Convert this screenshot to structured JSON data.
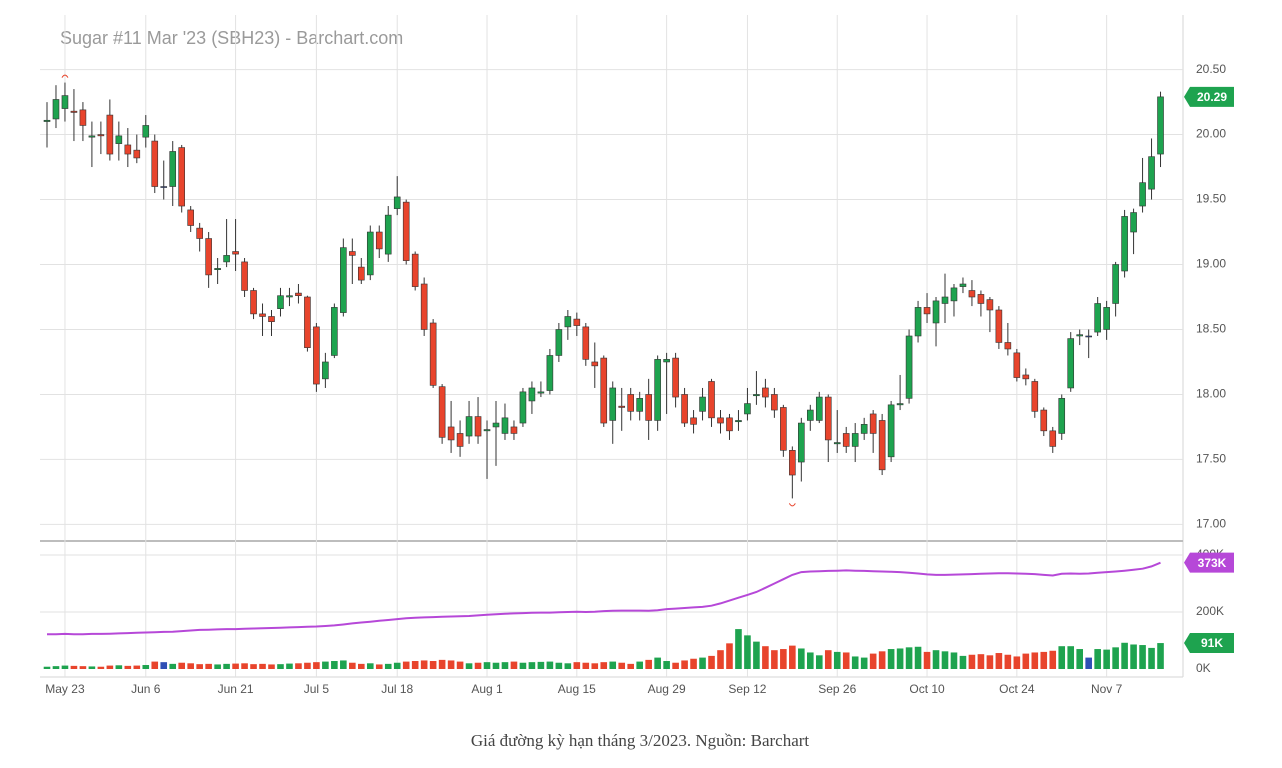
{
  "chart_data": {
    "type": "candlestick",
    "title": "Sugar #11 Mar '23 (SBH23) - Barchart.com",
    "categories": [
      null,
      null,
      "May 23",
      null,
      null,
      null,
      null,
      null,
      null,
      null,
      null,
      "Jun 6",
      null,
      null,
      null,
      null,
      null,
      null,
      null,
      null,
      null,
      "Jun 21",
      null,
      null,
      null,
      null,
      null,
      null,
      null,
      null,
      "Jul 5",
      null,
      null,
      null,
      null,
      null,
      null,
      null,
      null,
      "Jul 18",
      null,
      null,
      null,
      null,
      null,
      null,
      null,
      null,
      null,
      "Aug 1",
      null,
      null,
      null,
      null,
      null,
      null,
      null,
      null,
      null,
      "Aug 15",
      null,
      null,
      null,
      null,
      null,
      null,
      null,
      null,
      null,
      "Aug 29",
      null,
      null,
      null,
      null,
      null,
      null,
      null,
      null,
      "Sep 12",
      null,
      null,
      null,
      null,
      null,
      null,
      null,
      null,
      null,
      "Sep 26",
      null,
      null,
      null,
      null,
      null,
      null,
      null,
      null,
      null,
      "Oct 10",
      null,
      null,
      null,
      null,
      null,
      null,
      null,
      null,
      null,
      "Oct 24",
      null,
      null,
      null,
      null,
      null,
      null,
      null,
      null,
      null,
      "Nov 7",
      null,
      null,
      null,
      null,
      null,
      null
    ],
    "open": [
      20.1,
      20.12,
      20.2,
      20.18,
      20.19,
      19.98,
      20.0,
      20.15,
      19.93,
      19.92,
      19.88,
      19.98,
      19.95,
      19.6,
      19.6,
      19.9,
      19.42,
      19.28,
      19.2,
      18.96,
      19.02,
      19.1,
      19.02,
      18.8,
      18.62,
      18.6,
      18.66,
      18.75,
      18.78,
      18.75,
      18.52,
      18.12,
      18.3,
      18.63,
      19.1,
      18.98,
      18.92,
      19.25,
      19.08,
      19.43,
      19.48,
      19.08,
      18.85,
      18.55,
      18.06,
      17.75,
      17.7,
      17.68,
      17.83,
      17.72,
      17.75,
      17.7,
      17.75,
      17.78,
      17.95,
      18.01,
      18.03,
      18.3,
      18.52,
      18.58,
      18.52,
      18.25,
      18.28,
      17.8,
      17.91,
      18.0,
      17.87,
      18.0,
      17.8,
      18.25,
      18.28,
      18.0,
      17.82,
      17.87,
      18.1,
      17.82,
      17.82,
      17.79,
      17.85,
      17.99,
      18.05,
      18.0,
      17.9,
      17.57,
      17.48,
      17.8,
      17.8,
      17.98,
      17.62,
      17.7,
      17.6,
      17.7,
      17.85,
      17.8,
      17.52,
      17.92,
      17.97,
      18.45,
      18.67,
      18.55,
      18.7,
      18.72,
      18.83,
      18.8,
      18.77,
      18.73,
      18.65,
      18.4,
      18.32,
      18.15,
      18.1,
      17.88,
      17.72,
      17.7,
      18.05,
      18.45,
      18.45,
      18.48,
      18.5,
      18.7,
      18.95,
      19.25,
      19.45,
      19.58,
      19.85
    ],
    "high": [
      20.25,
      20.38,
      20.4,
      20.35,
      20.25,
      20.1,
      20.1,
      20.27,
      20.1,
      20.05,
      20.0,
      20.15,
      20.0,
      19.8,
      19.95,
      19.92,
      19.45,
      19.32,
      19.25,
      19.05,
      19.35,
      19.35,
      19.05,
      18.82,
      18.7,
      18.65,
      18.82,
      18.82,
      18.85,
      18.76,
      18.55,
      18.32,
      18.7,
      19.2,
      19.2,
      19.05,
      19.3,
      19.3,
      19.45,
      19.68,
      19.5,
      19.1,
      18.9,
      18.58,
      18.08,
      17.95,
      17.8,
      17.95,
      17.98,
      17.8,
      17.95,
      17.93,
      17.8,
      18.05,
      18.1,
      18.1,
      18.35,
      18.55,
      18.65,
      18.63,
      18.55,
      18.4,
      18.3,
      18.1,
      18.05,
      18.05,
      18.02,
      18.12,
      18.3,
      18.32,
      18.32,
      18.05,
      17.88,
      18.05,
      18.12,
      17.88,
      17.85,
      17.88,
      18.05,
      18.18,
      18.12,
      18.05,
      17.92,
      17.6,
      17.82,
      17.92,
      18.02,
      18.0,
      17.88,
      17.75,
      17.78,
      17.82,
      17.88,
      17.85,
      17.95,
      18.15,
      18.5,
      18.72,
      18.78,
      18.75,
      18.93,
      18.85,
      18.9,
      18.88,
      18.8,
      18.75,
      18.68,
      18.55,
      18.35,
      18.2,
      18.12,
      17.9,
      17.75,
      18.0,
      18.48,
      18.5,
      18.5,
      18.75,
      18.72,
      19.02,
      19.42,
      19.43,
      19.82,
      19.97,
      20.33
    ],
    "low": [
      19.9,
      20.05,
      20.1,
      19.95,
      19.95,
      19.75,
      19.85,
      19.8,
      19.8,
      19.75,
      19.78,
      19.9,
      19.55,
      19.5,
      19.45,
      19.4,
      19.25,
      19.1,
      18.82,
      18.85,
      18.98,
      18.95,
      18.75,
      18.58,
      18.45,
      18.45,
      18.6,
      18.68,
      18.7,
      18.33,
      18.02,
      18.05,
      18.28,
      18.6,
      18.85,
      18.85,
      18.88,
      19.05,
      19.02,
      19.38,
      19.0,
      18.8,
      18.45,
      18.05,
      17.62,
      17.55,
      17.52,
      17.62,
      17.62,
      17.35,
      17.45,
      17.65,
      17.65,
      17.75,
      17.85,
      17.98,
      18.0,
      18.25,
      18.42,
      18.45,
      18.22,
      18.05,
      17.75,
      17.62,
      17.72,
      17.8,
      17.8,
      17.65,
      17.72,
      17.85,
      17.9,
      17.75,
      17.7,
      17.8,
      17.75,
      17.7,
      17.65,
      17.72,
      17.8,
      17.92,
      17.9,
      17.82,
      17.52,
      17.2,
      17.33,
      17.72,
      17.78,
      17.48,
      17.55,
      17.55,
      17.48,
      17.65,
      17.55,
      17.38,
      17.48,
      17.88,
      17.93,
      18.4,
      18.55,
      18.37,
      18.55,
      18.6,
      18.78,
      18.68,
      18.6,
      18.48,
      18.35,
      18.3,
      18.1,
      18.07,
      17.82,
      17.68,
      17.55,
      17.65,
      18.02,
      18.38,
      18.28,
      18.45,
      18.42,
      18.6,
      18.9,
      19.08,
      19.4,
      19.5,
      19.75
    ],
    "close": [
      20.11,
      20.27,
      20.3,
      20.17,
      20.07,
      19.99,
      19.99,
      19.85,
      19.99,
      19.85,
      19.82,
      20.07,
      19.6,
      19.6,
      19.87,
      19.45,
      19.3,
      19.2,
      18.92,
      18.97,
      19.07,
      19.08,
      18.8,
      18.62,
      18.6,
      18.56,
      18.76,
      18.76,
      18.76,
      18.36,
      18.08,
      18.25,
      18.67,
      19.13,
      19.07,
      18.88,
      19.25,
      19.12,
      19.38,
      19.52,
      19.03,
      18.83,
      18.5,
      18.07,
      17.67,
      17.65,
      17.6,
      17.83,
      17.68,
      17.73,
      17.78,
      17.82,
      17.7,
      18.02,
      18.05,
      18.02,
      18.3,
      18.5,
      18.6,
      18.53,
      18.27,
      18.22,
      17.78,
      18.05,
      17.9,
      17.87,
      17.97,
      17.8,
      18.27,
      18.27,
      17.98,
      17.78,
      17.77,
      17.98,
      17.82,
      17.78,
      17.72,
      17.8,
      17.93,
      18.0,
      17.98,
      17.88,
      17.57,
      17.38,
      17.78,
      17.88,
      17.98,
      17.65,
      17.63,
      17.6,
      17.7,
      17.77,
      17.7,
      17.42,
      17.92,
      17.93,
      18.45,
      18.67,
      18.62,
      18.72,
      18.75,
      18.82,
      18.85,
      18.75,
      18.7,
      18.65,
      18.4,
      18.35,
      18.13,
      18.12,
      17.87,
      17.72,
      17.6,
      17.97,
      18.43,
      18.46,
      18.45,
      18.7,
      18.67,
      19.0,
      19.37,
      19.4,
      19.63,
      19.83,
      20.29
    ],
    "up_color": "#1ea34f",
    "down_color": "#e8442c",
    "unchanged_color": "#2f4fb5",
    "wick_color": "#333333",
    "ylim": [
      16.88,
      20.92
    ],
    "yticks": [
      {
        "value": 17,
        "label": "17.00"
      },
      {
        "value": 17.5,
        "label": "17.50"
      },
      {
        "value": 18,
        "label": "18.00"
      },
      {
        "value": 18.5,
        "label": "18.50"
      },
      {
        "value": 19,
        "label": "19.00"
      },
      {
        "value": 19.5,
        "label": "19.50"
      },
      {
        "value": 20,
        "label": "20.00"
      },
      {
        "value": 20.5,
        "label": "20.50"
      }
    ],
    "grid": true,
    "volume": {
      "values": [
        8,
        10,
        12,
        11,
        10,
        9,
        8,
        12,
        13,
        11,
        12,
        14,
        26,
        24,
        18,
        22,
        20,
        17,
        18,
        16,
        18,
        19,
        20,
        17,
        18,
        16,
        17,
        19,
        20,
        22,
        24,
        26,
        28,
        30,
        22,
        18,
        20,
        16,
        18,
        22,
        26,
        28,
        30,
        28,
        32,
        30,
        26,
        20,
        22,
        24,
        22,
        24,
        26,
        22,
        24,
        25,
        26,
        22,
        20,
        24,
        22,
        20,
        24,
        26,
        22,
        18,
        26,
        32,
        40,
        28,
        22,
        30,
        36,
        40,
        46,
        66,
        90,
        140,
        118,
        96,
        80,
        66,
        70,
        82,
        72,
        58,
        48,
        66,
        60,
        58,
        44,
        40,
        54,
        62,
        70,
        72,
        76,
        78,
        60,
        66,
        62,
        58,
        46,
        50,
        52,
        48,
        56,
        50,
        44,
        54,
        58,
        60,
        64,
        80,
        80,
        70,
        40,
        70,
        68,
        76,
        92,
        86,
        84,
        74,
        91
      ],
      "value_labels": [
        null,
        null,
        null,
        null,
        null,
        null,
        null,
        null,
        null,
        null,
        null,
        null,
        null,
        null,
        null,
        null,
        null,
        null,
        null,
        null,
        null,
        null,
        null,
        null,
        null,
        null,
        null,
        null,
        null,
        null,
        null,
        null,
        null,
        null,
        null,
        null,
        null,
        null,
        null,
        null,
        null,
        null,
        null,
        null,
        null,
        null,
        null,
        null,
        null,
        null,
        null,
        null,
        null,
        null,
        null,
        null,
        null,
        null,
        null,
        null,
        null,
        null,
        null,
        null,
        null,
        null,
        null,
        null,
        null,
        null,
        null,
        null,
        null,
        null,
        null,
        null,
        null,
        null,
        null,
        null,
        null,
        null,
        null,
        null,
        null,
        null,
        null,
        null,
        null,
        null,
        null,
        null,
        null,
        null,
        null,
        null,
        null,
        null,
        null,
        null,
        null,
        null,
        null,
        null,
        null,
        null,
        null,
        null,
        null,
        null,
        null,
        null,
        null,
        null,
        null,
        null,
        null,
        null,
        null,
        null,
        null,
        null,
        null,
        null,
        "91K"
      ]
    },
    "open_interest": {
      "color": "#b648d8",
      "values": [
        122,
        122,
        123,
        122,
        122,
        123,
        123,
        124,
        125,
        126,
        127,
        128,
        129,
        130,
        131,
        133,
        135,
        137,
        138,
        139,
        140,
        140,
        141,
        142,
        143,
        144,
        145,
        146,
        147,
        148,
        149,
        151,
        153,
        156,
        160,
        163,
        166,
        169,
        172,
        175,
        178,
        180,
        181,
        182,
        183,
        184,
        185,
        186,
        188,
        190,
        192,
        194,
        195,
        196,
        197,
        198,
        198,
        199,
        200,
        201,
        200,
        201,
        203,
        204,
        205,
        205,
        205,
        204,
        206,
        210,
        212,
        214,
        216,
        218,
        222,
        230,
        240,
        250,
        260,
        270,
        285,
        300,
        315,
        330,
        340,
        342,
        343,
        344,
        345,
        346,
        345,
        344,
        343,
        342,
        341,
        340,
        338,
        335,
        332,
        330,
        330,
        331,
        332,
        333,
        334,
        335,
        336,
        336,
        335,
        334,
        333,
        330,
        328,
        334,
        335,
        334,
        335,
        338,
        340,
        342,
        345,
        348,
        352,
        360,
        373
      ],
      "value_labels": [
        null,
        null,
        null,
        null,
        null,
        null,
        null,
        null,
        null,
        null,
        null,
        null,
        null,
        null,
        null,
        null,
        null,
        null,
        null,
        null,
        null,
        null,
        null,
        null,
        null,
        null,
        null,
        null,
        null,
        null,
        null,
        null,
        null,
        null,
        null,
        null,
        null,
        null,
        null,
        null,
        null,
        null,
        null,
        null,
        null,
        null,
        null,
        null,
        null,
        null,
        null,
        null,
        null,
        null,
        null,
        null,
        null,
        null,
        null,
        null,
        null,
        null,
        null,
        null,
        null,
        null,
        null,
        null,
        null,
        null,
        null,
        null,
        null,
        null,
        null,
        null,
        null,
        null,
        null,
        null,
        null,
        null,
        null,
        null,
        null,
        null,
        null,
        null,
        null,
        null,
        null,
        null,
        null,
        null,
        null,
        null,
        null,
        null,
        null,
        null,
        null,
        null,
        null,
        null,
        null,
        null,
        null,
        null,
        null,
        null,
        null,
        null,
        null,
        null,
        null,
        null,
        null,
        null,
        null,
        null,
        null,
        null,
        null,
        null,
        "373K"
      ]
    },
    "y2lim": [
      0,
      435
    ],
    "y2ticks": [
      {
        "value": 0,
        "label": "0K"
      },
      {
        "value": 200,
        "label": "200K"
      },
      {
        "value": 400,
        "label": "400K"
      }
    ]
  },
  "caption": "Giá đường kỳ hạn tháng 3/2023. Nguồn: Barchart"
}
